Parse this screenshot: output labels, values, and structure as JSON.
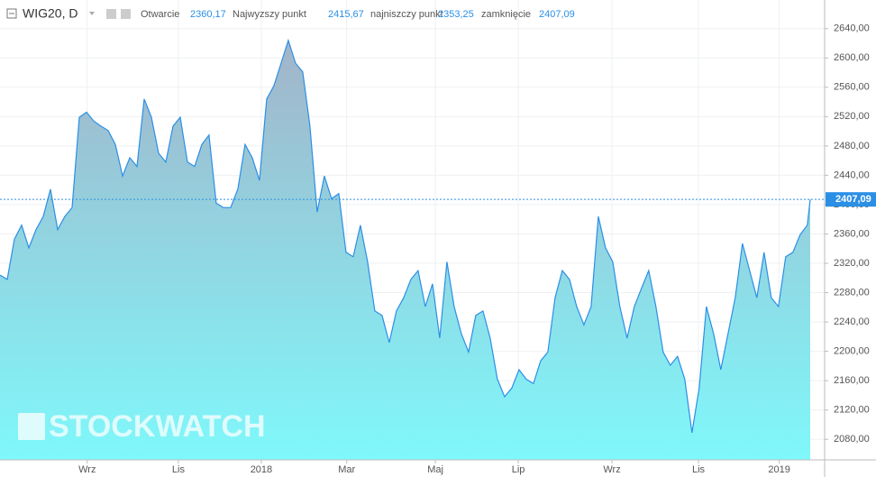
{
  "chart_data": {
    "type": "area",
    "header": {
      "symbol": "WIG20, D",
      "open_label": "Otwarcie",
      "open": "2360,17",
      "high_label": "Najwyzszy punkt",
      "high": "2415,67",
      "low_label": "najniszczy punkt",
      "low": "2353,25",
      "close_label": "zamknięcie",
      "close": "2407,09"
    },
    "watermark": "STOCKWATCH",
    "x": [
      0,
      1,
      2,
      3,
      4,
      5,
      6,
      7,
      8,
      9,
      10,
      11,
      12,
      13,
      14,
      15,
      16,
      17,
      18,
      19,
      20,
      21,
      22,
      23,
      24,
      25,
      26,
      27,
      28,
      29,
      30,
      31,
      32,
      33,
      34,
      35,
      36,
      37,
      38,
      39,
      40,
      41,
      42,
      43,
      44,
      45,
      46,
      47,
      48,
      49,
      50,
      51,
      52,
      53,
      54,
      55,
      56,
      57,
      58,
      59,
      60,
      61,
      62,
      63,
      64,
      65,
      66,
      67,
      68,
      69,
      70,
      71,
      72,
      73,
      74,
      75,
      76,
      77,
      78,
      79,
      80,
      81,
      82,
      83,
      84,
      85,
      86,
      87,
      88,
      89,
      90,
      91,
      92,
      93,
      94,
      95,
      96,
      97,
      98,
      99,
      100,
      101,
      102,
      103,
      104,
      105,
      106,
      107,
      108,
      109,
      110,
      111,
      112,
      112.4
    ],
    "series": [
      {
        "name": "WIG20",
        "color": "#2b8fe6",
        "values": [
          2304,
          2298,
          2353,
          2372,
          2341,
          2366,
          2384,
          2421,
          2366,
          2384,
          2396,
          2519,
          2526,
          2514,
          2507,
          2501,
          2482,
          2439,
          2464,
          2452,
          2544,
          2519,
          2470,
          2458,
          2507,
          2519,
          2458,
          2452,
          2482,
          2495,
          2402,
          2396,
          2396,
          2421,
          2482,
          2464,
          2433,
          2544,
          2562,
          2593,
          2624,
          2593,
          2581,
          2507,
          2390,
          2439,
          2408,
          2415,
          2335,
          2329,
          2372,
          2322,
          2255,
          2249,
          2212,
          2255,
          2273,
          2298,
          2310,
          2261,
          2292,
          2218,
          2322,
          2261,
          2224,
          2199,
          2249,
          2255,
          2218,
          2162,
          2138,
          2150,
          2175,
          2162,
          2156,
          2187,
          2199,
          2273,
          2310,
          2298,
          2261,
          2236,
          2261,
          2384,
          2341,
          2322,
          2261,
          2218,
          2261,
          2286,
          2310,
          2261,
          2199,
          2181,
          2193,
          2162,
          2089,
          2150,
          2261,
          2224,
          2175,
          2224,
          2273,
          2347,
          2310,
          2273,
          2335,
          2273,
          2261,
          2329,
          2335,
          2359,
          2372,
          2407.09
        ]
      }
    ],
    "last_value": {
      "value": 2407.09,
      "label": "2407,09"
    },
    "xlim": [
      0,
      114.4
    ],
    "xticks": [
      {
        "value": 12.1,
        "label": "Wrz"
      },
      {
        "value": 24.75,
        "label": "Lis"
      },
      {
        "value": 36.25,
        "label": "2018"
      },
      {
        "value": 48.1,
        "label": "Mar"
      },
      {
        "value": 60.4,
        "label": "Maj"
      },
      {
        "value": 71.9,
        "label": "Lip"
      },
      {
        "value": 84.9,
        "label": "Wrz"
      },
      {
        "value": 96.9,
        "label": "Lis"
      },
      {
        "value": 108.1,
        "label": "2019"
      }
    ],
    "ylim": [
      2052,
      2679
    ],
    "yticks": [
      {
        "value": 2080,
        "label": "2080,00"
      },
      {
        "value": 2120,
        "label": "2120,00"
      },
      {
        "value": 2160,
        "label": "2160,00"
      },
      {
        "value": 2200,
        "label": "2200,00"
      },
      {
        "value": 2240,
        "label": "2240,00"
      },
      {
        "value": 2280,
        "label": "2280,00"
      },
      {
        "value": 2320,
        "label": "2320,00"
      },
      {
        "value": 2360,
        "label": "2360,00"
      },
      {
        "value": 2400,
        "label": "2400,00"
      },
      {
        "value": 2440,
        "label": "2440,00"
      },
      {
        "value": 2480,
        "label": "2480,00"
      },
      {
        "value": 2520,
        "label": "2520,00"
      },
      {
        "value": 2560,
        "label": "2560,00"
      },
      {
        "value": 2600,
        "label": "2600,00"
      },
      {
        "value": 2640,
        "label": "2640,00"
      }
    ]
  }
}
